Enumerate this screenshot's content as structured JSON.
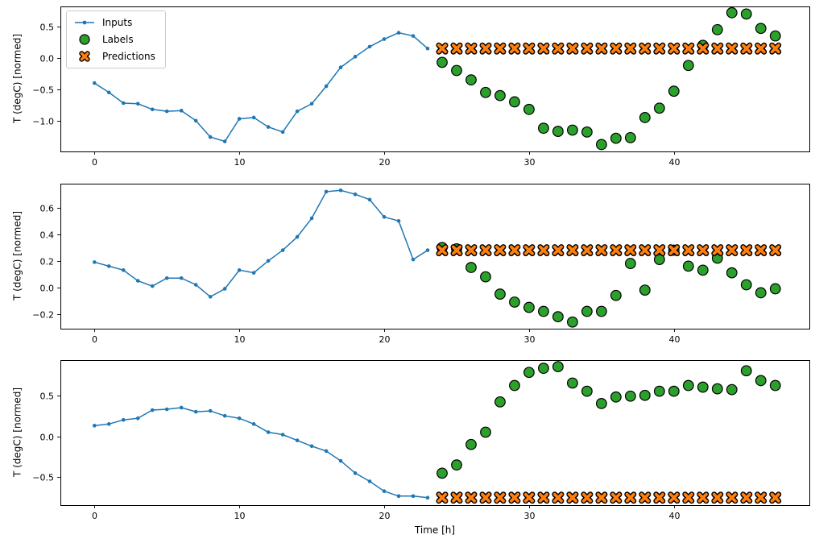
{
  "figure": {
    "xlabel": "Time [h]",
    "xticks": [
      0,
      10,
      20,
      30,
      40
    ],
    "xlim": [
      -2.35,
      49.35
    ],
    "legend_position": "upper left",
    "legend": [
      {
        "label": "Inputs"
      },
      {
        "label": "Labels"
      },
      {
        "label": "Predictions"
      }
    ],
    "colors": {
      "inputs": "#1f77b4",
      "labels": "#2ca02c",
      "predictions": "#ff7f0e",
      "marker_edge": "#000000",
      "axis": "#000000",
      "background": "#ffffff"
    }
  },
  "chart_data": [
    {
      "type": "line",
      "title": "",
      "ylabel": "T (degC) [normed]",
      "ylim": [
        -1.49,
        0.82
      ],
      "yticks": [
        0.5,
        0.0,
        -0.5,
        -1.0
      ],
      "series": [
        {
          "name": "Inputs",
          "marker": "line-dot",
          "color_key": "inputs",
          "x": [
            0,
            1,
            2,
            3,
            4,
            5,
            6,
            7,
            8,
            9,
            10,
            11,
            12,
            13,
            14,
            15,
            16,
            17,
            18,
            19,
            20,
            21,
            22,
            23
          ],
          "values": [
            -0.4,
            -0.55,
            -0.72,
            -0.73,
            -0.82,
            -0.85,
            -0.84,
            -1.0,
            -1.26,
            -1.33,
            -0.97,
            -0.95,
            -1.1,
            -1.18,
            -0.85,
            -0.73,
            -0.45,
            -0.15,
            0.02,
            0.18,
            0.3,
            0.4,
            0.35,
            0.15
          ]
        },
        {
          "name": "Labels",
          "marker": "circle",
          "color_key": "labels",
          "x": [
            24,
            25,
            26,
            27,
            28,
            29,
            30,
            31,
            32,
            33,
            34,
            35,
            36,
            37,
            38,
            39,
            40,
            41,
            42,
            43,
            44,
            45,
            46,
            47
          ],
          "values": [
            -0.07,
            -0.2,
            -0.35,
            -0.55,
            -0.6,
            -0.7,
            -0.82,
            -1.12,
            -1.17,
            -1.15,
            -1.18,
            -1.38,
            -1.28,
            -1.27,
            -0.95,
            -0.8,
            -0.53,
            -0.12,
            0.2,
            0.45,
            0.72,
            0.7,
            0.47,
            0.35
          ]
        },
        {
          "name": "Predictions",
          "marker": "x",
          "color_key": "predictions",
          "x": [
            24,
            25,
            26,
            27,
            28,
            29,
            30,
            31,
            32,
            33,
            34,
            35,
            36,
            37,
            38,
            39,
            40,
            41,
            42,
            43,
            44,
            45,
            46,
            47
          ],
          "values": [
            0.15,
            0.15,
            0.15,
            0.15,
            0.15,
            0.15,
            0.15,
            0.15,
            0.15,
            0.15,
            0.15,
            0.15,
            0.15,
            0.15,
            0.15,
            0.15,
            0.15,
            0.15,
            0.15,
            0.15,
            0.15,
            0.15,
            0.15,
            0.15
          ]
        }
      ]
    },
    {
      "type": "line",
      "title": "",
      "ylabel": "T (degC) [normed]",
      "ylim": [
        -0.31,
        0.78
      ],
      "yticks": [
        0.6,
        0.4,
        0.2,
        0.0,
        -0.2
      ],
      "series": [
        {
          "name": "Inputs",
          "marker": "line-dot",
          "color_key": "inputs",
          "x": [
            0,
            1,
            2,
            3,
            4,
            5,
            6,
            7,
            8,
            9,
            10,
            11,
            12,
            13,
            14,
            15,
            16,
            17,
            18,
            19,
            20,
            21,
            22,
            23
          ],
          "values": [
            0.19,
            0.16,
            0.13,
            0.05,
            0.01,
            0.07,
            0.07,
            0.02,
            -0.07,
            -0.01,
            0.13,
            0.11,
            0.2,
            0.28,
            0.38,
            0.52,
            0.72,
            0.73,
            0.7,
            0.66,
            0.53,
            0.5,
            0.21,
            0.28
          ]
        },
        {
          "name": "Labels",
          "marker": "circle",
          "color_key": "labels",
          "x": [
            24,
            25,
            26,
            27,
            28,
            29,
            30,
            31,
            32,
            33,
            34,
            35,
            36,
            37,
            38,
            39,
            40,
            41,
            42,
            43,
            44,
            45,
            46,
            47
          ],
          "values": [
            0.3,
            0.29,
            0.15,
            0.08,
            -0.05,
            -0.11,
            -0.15,
            -0.18,
            -0.22,
            -0.26,
            -0.18,
            -0.18,
            -0.06,
            0.18,
            -0.02,
            0.21,
            0.28,
            0.16,
            0.13,
            0.22,
            0.11,
            0.02,
            -0.04,
            -0.01
          ]
        },
        {
          "name": "Predictions",
          "marker": "x",
          "color_key": "predictions",
          "x": [
            24,
            25,
            26,
            27,
            28,
            29,
            30,
            31,
            32,
            33,
            34,
            35,
            36,
            37,
            38,
            39,
            40,
            41,
            42,
            43,
            44,
            45,
            46,
            47
          ],
          "values": [
            0.28,
            0.28,
            0.28,
            0.28,
            0.28,
            0.28,
            0.28,
            0.28,
            0.28,
            0.28,
            0.28,
            0.28,
            0.28,
            0.28,
            0.28,
            0.28,
            0.28,
            0.28,
            0.28,
            0.28,
            0.28,
            0.28,
            0.28,
            0.28
          ]
        }
      ]
    },
    {
      "type": "line",
      "title": "",
      "ylabel": "T (degC) [normed]",
      "ylim": [
        -0.84,
        0.93
      ],
      "yticks": [
        0.5,
        0.0,
        -0.5
      ],
      "series": [
        {
          "name": "Inputs",
          "marker": "line-dot",
          "color_key": "inputs",
          "x": [
            0,
            1,
            2,
            3,
            4,
            5,
            6,
            7,
            8,
            9,
            10,
            11,
            12,
            13,
            14,
            15,
            16,
            17,
            18,
            19,
            20,
            21,
            22,
            23
          ],
          "values": [
            0.13,
            0.15,
            0.2,
            0.22,
            0.32,
            0.33,
            0.35,
            0.3,
            0.31,
            0.25,
            0.22,
            0.15,
            0.05,
            0.02,
            -0.05,
            -0.12,
            -0.18,
            -0.3,
            -0.45,
            -0.55,
            -0.67,
            -0.73,
            -0.73,
            -0.75
          ]
        },
        {
          "name": "Labels",
          "marker": "circle",
          "color_key": "labels",
          "x": [
            24,
            25,
            26,
            27,
            28,
            29,
            30,
            31,
            32,
            33,
            34,
            35,
            36,
            37,
            38,
            39,
            40,
            41,
            42,
            43,
            44,
            45,
            46,
            47
          ],
          "values": [
            -0.45,
            -0.35,
            -0.1,
            0.05,
            0.42,
            0.62,
            0.78,
            0.83,
            0.85,
            0.65,
            0.55,
            0.4,
            0.48,
            0.49,
            0.5,
            0.55,
            0.55,
            0.62,
            0.6,
            0.58,
            0.57,
            0.8,
            0.68,
            0.62
          ]
        },
        {
          "name": "Predictions",
          "marker": "x",
          "color_key": "predictions",
          "x": [
            24,
            25,
            26,
            27,
            28,
            29,
            30,
            31,
            32,
            33,
            34,
            35,
            36,
            37,
            38,
            39,
            40,
            41,
            42,
            43,
            44,
            45,
            46,
            47
          ],
          "values": [
            -0.75,
            -0.75,
            -0.75,
            -0.75,
            -0.75,
            -0.75,
            -0.75,
            -0.75,
            -0.75,
            -0.75,
            -0.75,
            -0.75,
            -0.75,
            -0.75,
            -0.75,
            -0.75,
            -0.75,
            -0.75,
            -0.75,
            -0.75,
            -0.75,
            -0.75,
            -0.75,
            -0.75
          ]
        }
      ]
    }
  ]
}
